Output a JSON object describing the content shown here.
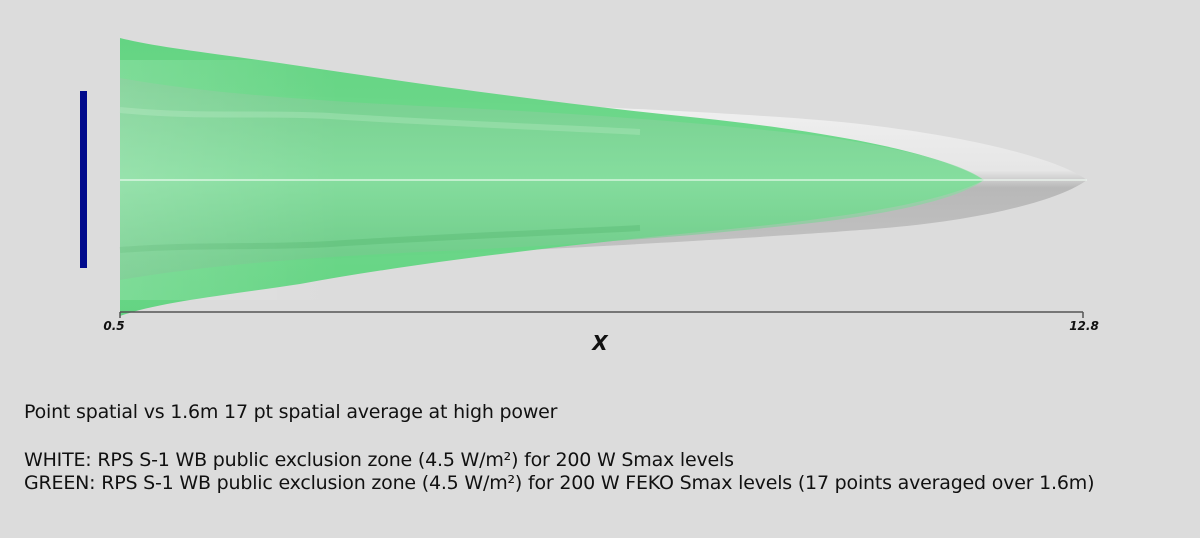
{
  "axis": {
    "label": "X",
    "min_label": "0.5",
    "max_label": "12.8"
  },
  "captions": {
    "title": "Point spatial vs 1.6m 17 pt spatial average at high power",
    "white_line": "WHITE: RPS S-1 WB public exclusion zone (4.5 W/m²) for 200 W Smax levels",
    "green_line": "GREEN: RPS S-1 WB public exclusion zone (4.5 W/m²) for 200 W FEKO Smax levels (17 points averaged over 1.6m)"
  },
  "colors": {
    "background": "#dcdcdc",
    "antenna": "#000a8c",
    "white_zone": "#e8e8e8",
    "green_zone": "#5ed47e",
    "axis": "#555555"
  }
}
